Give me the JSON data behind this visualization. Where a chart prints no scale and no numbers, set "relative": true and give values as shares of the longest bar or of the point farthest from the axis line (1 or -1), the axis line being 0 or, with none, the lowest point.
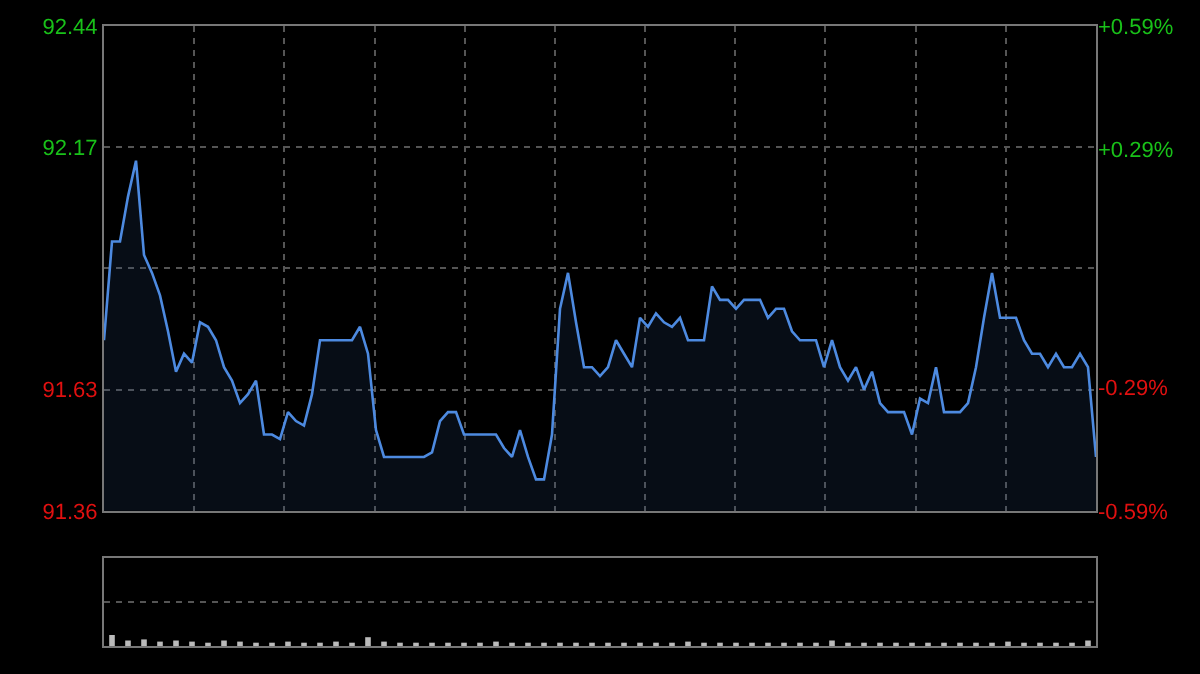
{
  "chart_data": [
    {
      "type": "area",
      "categories": [
        null,
        null,
        null,
        null,
        null,
        null,
        null,
        null,
        null,
        null,
        null,
        null,
        null,
        null,
        null,
        null,
        null,
        null,
        null,
        null,
        null,
        null,
        null,
        null,
        null,
        null,
        null,
        null,
        null,
        null,
        null,
        null,
        null,
        null,
        null,
        null,
        null,
        null,
        null,
        null,
        null,
        null,
        null,
        null,
        null,
        null,
        null,
        null,
        null,
        null,
        null,
        null,
        null,
        null,
        null,
        null,
        null,
        null,
        null,
        null,
        null,
        null,
        null,
        null,
        null,
        null,
        null,
        null,
        null,
        null,
        null,
        null,
        null,
        null,
        null,
        null,
        null,
        null,
        null,
        null,
        null,
        null,
        null,
        null,
        null,
        null,
        null,
        null,
        null,
        null,
        null,
        null,
        null,
        null,
        null,
        null,
        null,
        null,
        null,
        null,
        null,
        null,
        null,
        null,
        null,
        null,
        null,
        null,
        null,
        null,
        null,
        null,
        null,
        null,
        null,
        null,
        null,
        null,
        null,
        null,
        null,
        null,
        null,
        null,
        null
      ],
      "series": [
        {
          "color": "#4d8ae0",
          "values": [
            91.74,
            91.96,
            91.96,
            92.06,
            92.14,
            91.93,
            91.89,
            91.84,
            91.76,
            91.67,
            91.71,
            91.69,
            91.78,
            91.77,
            91.74,
            91.68,
            91.65,
            91.6,
            91.62,
            91.65,
            91.53,
            91.53,
            91.52,
            91.58,
            91.56,
            91.55,
            91.62,
            91.74,
            91.74,
            91.74,
            91.74,
            91.74,
            91.77,
            91.71,
            91.54,
            91.48,
            91.48,
            91.48,
            91.48,
            91.48,
            91.48,
            91.49,
            91.56,
            91.58,
            91.58,
            91.53,
            91.53,
            91.53,
            91.53,
            91.53,
            91.5,
            91.48,
            91.54,
            91.48,
            91.43,
            91.43,
            91.53,
            91.81,
            91.89,
            91.78,
            91.68,
            91.68,
            91.66,
            91.68,
            91.74,
            91.71,
            91.68,
            91.79,
            91.77,
            91.8,
            91.78,
            91.77,
            91.79,
            91.74,
            91.74,
            91.74,
            91.86,
            91.83,
            91.83,
            91.81,
            91.83,
            91.83,
            91.83,
            91.79,
            91.81,
            91.81,
            91.76,
            91.74,
            91.74,
            91.74,
            91.68,
            91.74,
            91.68,
            91.65,
            91.68,
            91.63,
            91.67,
            91.6,
            91.58,
            91.58,
            91.58,
            91.53,
            91.61,
            91.6,
            91.68,
            91.58,
            91.58,
            91.58,
            91.6,
            91.68,
            91.79,
            91.89,
            91.79,
            91.79,
            91.79,
            91.74,
            91.71,
            91.71,
            91.68,
            91.71,
            91.68,
            91.68,
            91.71,
            91.68,
            91.48
          ]
        }
      ],
      "ylim": [
        91.36,
        92.44
      ],
      "yticks": [
        91.36,
        91.63,
        {
          "value": 91.9,
          "label": null
        },
        92.17,
        92.44
      ],
      "y2lim": [
        -0.59,
        0.59
      ],
      "y2ticks": [
        {
          "value": -0.59,
          "label": "-0.59%"
        },
        {
          "value": -0.29,
          "label": "-0.29%"
        },
        {
          "value": 0,
          "label": null
        },
        {
          "value": 0.29,
          "label": "+0.29%"
        },
        {
          "value": 0.59,
          "label": "+0.59%"
        }
      ],
      "grid": true
    },
    {
      "type": "bar",
      "relative": true,
      "color": "#bbbbbb",
      "grid": true,
      "categories": [
        null,
        null,
        null,
        null,
        null,
        null,
        null,
        null,
        null,
        null,
        null,
        null,
        null,
        null,
        null,
        null,
        null,
        null,
        null,
        null,
        null,
        null,
        null,
        null,
        null,
        null,
        null,
        null,
        null,
        null,
        null,
        null,
        null,
        null,
        null,
        null,
        null,
        null,
        null,
        null,
        null,
        null,
        null,
        null,
        null,
        null,
        null,
        null,
        null,
        null,
        null,
        null,
        null,
        null,
        null,
        null,
        null,
        null,
        null,
        null,
        null,
        null
      ],
      "values": [
        1,
        0.5,
        0.6,
        0.4,
        0.5,
        0.4,
        0.3,
        0.5,
        0.4,
        0.3,
        0.3,
        0.4,
        0.3,
        0.3,
        0.4,
        0.3,
        0.8,
        0.4,
        0.3,
        0.3,
        0.3,
        0.3,
        0.3,
        0.3,
        0.4,
        0.3,
        0.3,
        0.3,
        0.3,
        0.3,
        0.3,
        0.3,
        0.3,
        0.3,
        0.3,
        0.3,
        0.4,
        0.3,
        0.3,
        0.3,
        0.3,
        0.3,
        0.3,
        0.3,
        0.3,
        0.5,
        0.3,
        0.3,
        0.3,
        0.3,
        0.3,
        0.3,
        0.3,
        0.3,
        0.3,
        0.3,
        0.4,
        0.3,
        0.3,
        0.3,
        0.3,
        0.5
      ]
    }
  ]
}
